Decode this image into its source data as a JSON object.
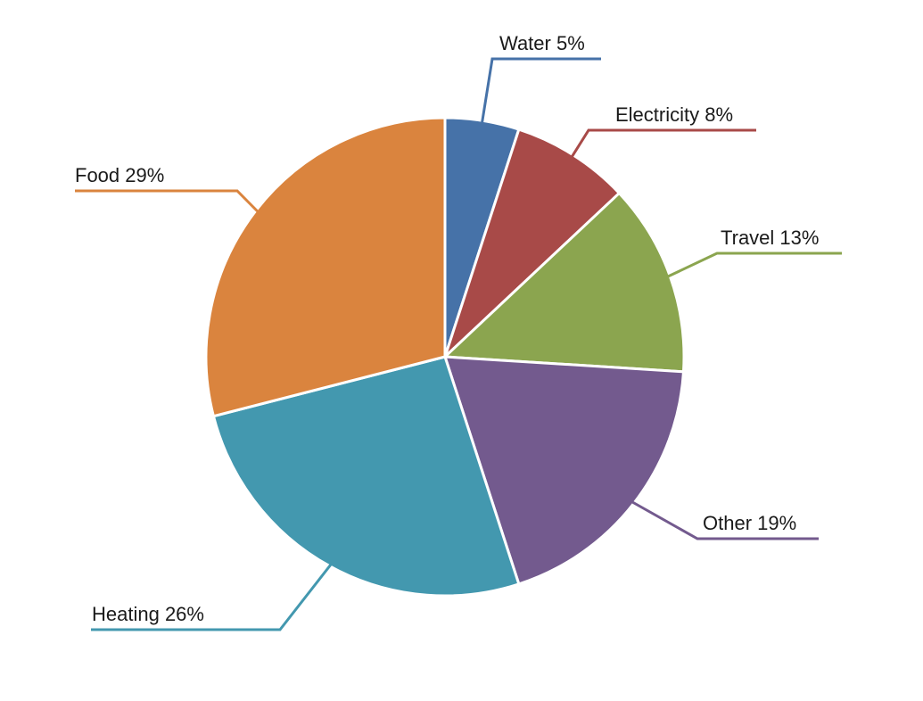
{
  "chart_data": {
    "type": "pie",
    "title": "",
    "slices": [
      {
        "label": "Water",
        "value": 5,
        "display": "Water 5%",
        "color": "#4672A8"
      },
      {
        "label": "Electricity",
        "value": 8,
        "display": "Electricity 8%",
        "color": "#A84A48"
      },
      {
        "label": "Travel",
        "value": 13,
        "display": "Travel 13%",
        "color": "#8BA54F"
      },
      {
        "label": "Other",
        "value": 19,
        "display": "Other 19%",
        "color": "#735A8E"
      },
      {
        "label": "Heating",
        "value": 26,
        "display": "Heating 26%",
        "color": "#4398AF"
      },
      {
        "label": "Food",
        "value": 29,
        "display": "Food 29%",
        "color": "#DA843E"
      }
    ],
    "start_angle": "12 o'clock",
    "direction": "clockwise",
    "legend": "none",
    "labels": "outside with leader lines"
  }
}
